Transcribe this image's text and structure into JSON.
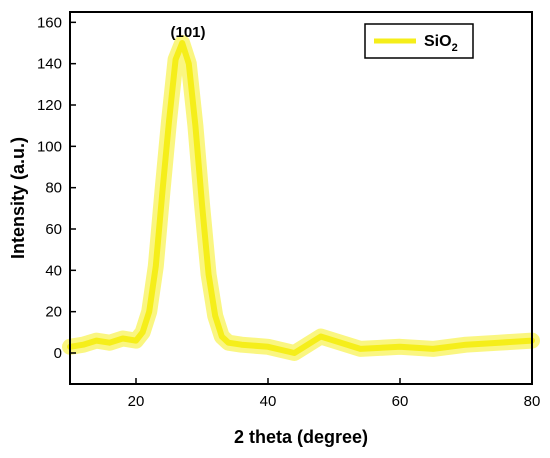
{
  "chart_data": {
    "type": "line",
    "title": "",
    "xlabel": "2 theta (degree)",
    "ylabel": "Intensity (a.u.)",
    "xlim": [
      10,
      80
    ],
    "ylim": [
      -15,
      165
    ],
    "x_ticks": [
      20,
      40,
      60,
      80
    ],
    "y_ticks": [
      0,
      20,
      40,
      60,
      80,
      100,
      120,
      140,
      160
    ],
    "grid": false,
    "legend_position": "top-right",
    "series": [
      {
        "name": "SiO₂",
        "legend_main": "SiO",
        "legend_sub": "2",
        "color": "#f5ee1a",
        "x": [
          10,
          12,
          14,
          16,
          18,
          20,
          21,
          22,
          23,
          24,
          25,
          26,
          27,
          28,
          29,
          30,
          31,
          32,
          33,
          34,
          36,
          40,
          44,
          48,
          50,
          54,
          60,
          65,
          70,
          75,
          80
        ],
        "y": [
          3,
          4,
          6,
          5,
          7,
          6,
          10,
          20,
          42,
          78,
          112,
          142,
          150,
          140,
          110,
          72,
          38,
          18,
          8,
          5,
          4,
          3,
          0,
          8,
          6,
          2,
          3,
          2,
          4,
          5,
          6
        ]
      }
    ],
    "annotations": [
      {
        "text": "(101)",
        "x": 27,
        "y": 160
      }
    ]
  }
}
